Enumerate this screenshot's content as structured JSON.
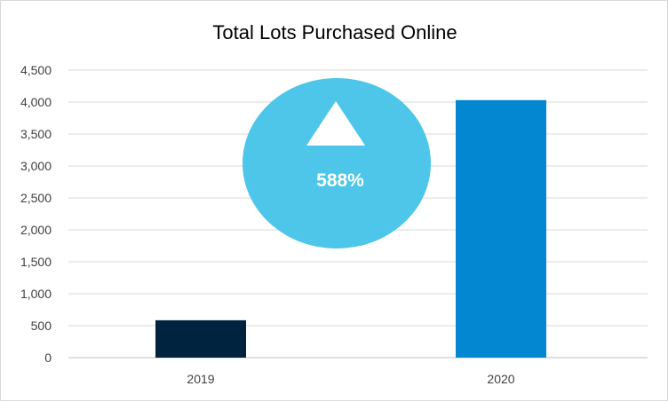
{
  "chart_data": {
    "type": "bar",
    "title": "Total Lots Purchased Online",
    "categories": [
      "2019",
      "2020"
    ],
    "values": [
      585,
      4030
    ],
    "bar_colors": [
      "#002440",
      "#0287d0"
    ],
    "ylim": [
      0,
      4500
    ],
    "y_ticks": [
      0,
      500,
      1000,
      1500,
      2000,
      2500,
      3000,
      3500,
      4000,
      4500
    ],
    "y_tick_labels": [
      "0",
      "500",
      "1,000",
      "1,500",
      "2,000",
      "2,500",
      "3,000",
      "3,500",
      "4,000",
      "4,500"
    ],
    "grid": true,
    "gridline_color": "#d9d9d9",
    "legend": "none",
    "annotation": {
      "text": "588%",
      "icon": "up-triangle-icon",
      "shape": "ellipse",
      "color": "#4dc6ea"
    }
  }
}
